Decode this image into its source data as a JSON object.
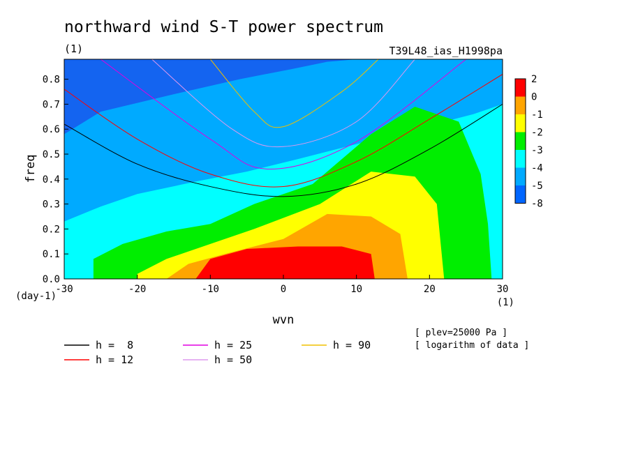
{
  "chart_data": {
    "type": "heatmap",
    "title": "northward wind S-T power spectrum",
    "title_unit": "(1)",
    "subtitle_right": "T39L48_ias_H1998pa",
    "xlabel": "wvn",
    "xunit": "(1)",
    "ylabel": "freq",
    "yunit": "(day-1)",
    "xlim": [
      -30,
      30
    ],
    "ylim": [
      0,
      0.88
    ],
    "xticks": [
      -30,
      -20,
      -10,
      0,
      10,
      20,
      30
    ],
    "yticks": [
      0.0,
      0.1,
      0.2,
      0.3,
      0.4,
      0.5,
      0.6,
      0.7,
      0.8
    ],
    "grid": false,
    "colorbar": {
      "labels": [
        "2",
        "0",
        "-1",
        "-2",
        "-3",
        "-4",
        "-5",
        "-8"
      ],
      "levels": [
        2,
        0,
        -1,
        -2,
        -3,
        -4,
        -5,
        -8
      ],
      "colors": [
        "#ff0000",
        "#ffa500",
        "#ffff00",
        "#00ee00",
        "#00ffff",
        "#00aaff",
        "#0066ff"
      ]
    },
    "fill_colors": {
      "lt_-5": "#1464f0",
      "-5_-4": "#00aaff",
      "-4_-3": "#00ffff",
      "-3_-2": "#00ee00",
      "-2_-1": "#ffff00",
      "-1_0": "#ffa500",
      "gt_0": "#ff0000"
    },
    "contour_regions": [
      {
        "level": "-5_-4",
        "outline": [
          [
            -30,
            0.58
          ],
          [
            -25,
            0.67
          ],
          [
            -15,
            0.74
          ],
          [
            -6,
            0.8
          ],
          [
            1,
            0.84
          ],
          [
            6,
            0.87
          ],
          [
            10,
            0.88
          ],
          [
            30,
            0.88
          ],
          [
            30,
            0.8
          ],
          [
            -30,
            0.8
          ]
        ]
      },
      {
        "level": "-4_-3",
        "outline": [
          [
            -30,
            0.23
          ],
          [
            -25,
            0.29
          ],
          [
            -20,
            0.34
          ],
          [
            -12,
            0.39
          ],
          [
            -5,
            0.43
          ],
          [
            2,
            0.48
          ],
          [
            10,
            0.54
          ],
          [
            18,
            0.6
          ],
          [
            26,
            0.66
          ],
          [
            30,
            0.7
          ]
        ]
      },
      {
        "level": "-3_-2",
        "outline": [
          [
            -26,
            0.08
          ],
          [
            -22,
            0.14
          ],
          [
            -16,
            0.19
          ],
          [
            -10,
            0.22
          ],
          [
            -4,
            0.3
          ],
          [
            4,
            0.38
          ],
          [
            12,
            0.58
          ],
          [
            18,
            0.69
          ],
          [
            24,
            0.63
          ],
          [
            27,
            0.42
          ],
          [
            28,
            0.22
          ],
          [
            28.5,
            0.0
          ]
        ]
      },
      {
        "level": "-2_-1",
        "outline": [
          [
            -20,
            0.02
          ],
          [
            -16,
            0.08
          ],
          [
            -10,
            0.14
          ],
          [
            -4,
            0.2
          ],
          [
            5,
            0.3
          ],
          [
            12,
            0.43
          ],
          [
            18,
            0.41
          ],
          [
            21,
            0.3
          ],
          [
            22,
            0.0
          ]
        ]
      },
      {
        "level": "-1_0",
        "outline": [
          [
            -16,
            0.0
          ],
          [
            -13,
            0.06
          ],
          [
            -8,
            0.1
          ],
          [
            0,
            0.16
          ],
          [
            6,
            0.26
          ],
          [
            12,
            0.25
          ],
          [
            16,
            0.18
          ],
          [
            17,
            0.0
          ]
        ]
      },
      {
        "level": "gt_0",
        "outline": [
          [
            -12,
            0.0
          ],
          [
            -10,
            0.08
          ],
          [
            -5,
            0.12
          ],
          [
            2,
            0.13
          ],
          [
            8,
            0.13
          ],
          [
            12,
            0.1
          ],
          [
            12.5,
            0.0
          ]
        ]
      }
    ],
    "legend": {
      "placement": "bottom-left",
      "entries": [
        {
          "label": "h =  8",
          "color": "#000000"
        },
        {
          "label": "h = 12",
          "color": "#ff0000"
        },
        {
          "label": "h = 25",
          "color": "#e000e0"
        },
        {
          "label": "h = 50",
          "color": "#dd99ee"
        },
        {
          "label": "h = 90",
          "color": "#f0c000"
        }
      ]
    },
    "curves": [
      {
        "h": 8,
        "color": "#000000",
        "points": [
          [
            -30,
            0.62
          ],
          [
            -20,
            0.46
          ],
          [
            -10,
            0.37
          ],
          [
            0,
            0.33
          ],
          [
            10,
            0.38
          ],
          [
            20,
            0.52
          ],
          [
            30,
            0.7
          ]
        ]
      },
      {
        "h": 12,
        "color": "#ff0000",
        "points": [
          [
            -30,
            0.76
          ],
          [
            -20,
            0.56
          ],
          [
            -10,
            0.42
          ],
          [
            0,
            0.37
          ],
          [
            10,
            0.47
          ],
          [
            20,
            0.64
          ],
          [
            30,
            0.82
          ]
        ]
      },
      {
        "h": 25,
        "color": "#e000e0",
        "points": [
          [
            -25,
            0.88
          ],
          [
            -10,
            0.56
          ],
          [
            -2,
            0.44
          ],
          [
            10,
            0.55
          ],
          [
            25,
            0.88
          ]
        ]
      },
      {
        "h": 50,
        "color": "#dd99ee",
        "points": [
          [
            -18,
            0.88
          ],
          [
            -7,
            0.6
          ],
          [
            0,
            0.53
          ],
          [
            10,
            0.63
          ],
          [
            18,
            0.88
          ]
        ]
      },
      {
        "h": 90,
        "color": "#f0c000",
        "points": [
          [
            -10,
            0.88
          ],
          [
            -4,
            0.67
          ],
          [
            0,
            0.61
          ],
          [
            8,
            0.75
          ],
          [
            13,
            0.88
          ]
        ]
      }
    ],
    "notes": [
      "[ plev=25000 Pa ]",
      "[ logarithm of data ]"
    ]
  }
}
